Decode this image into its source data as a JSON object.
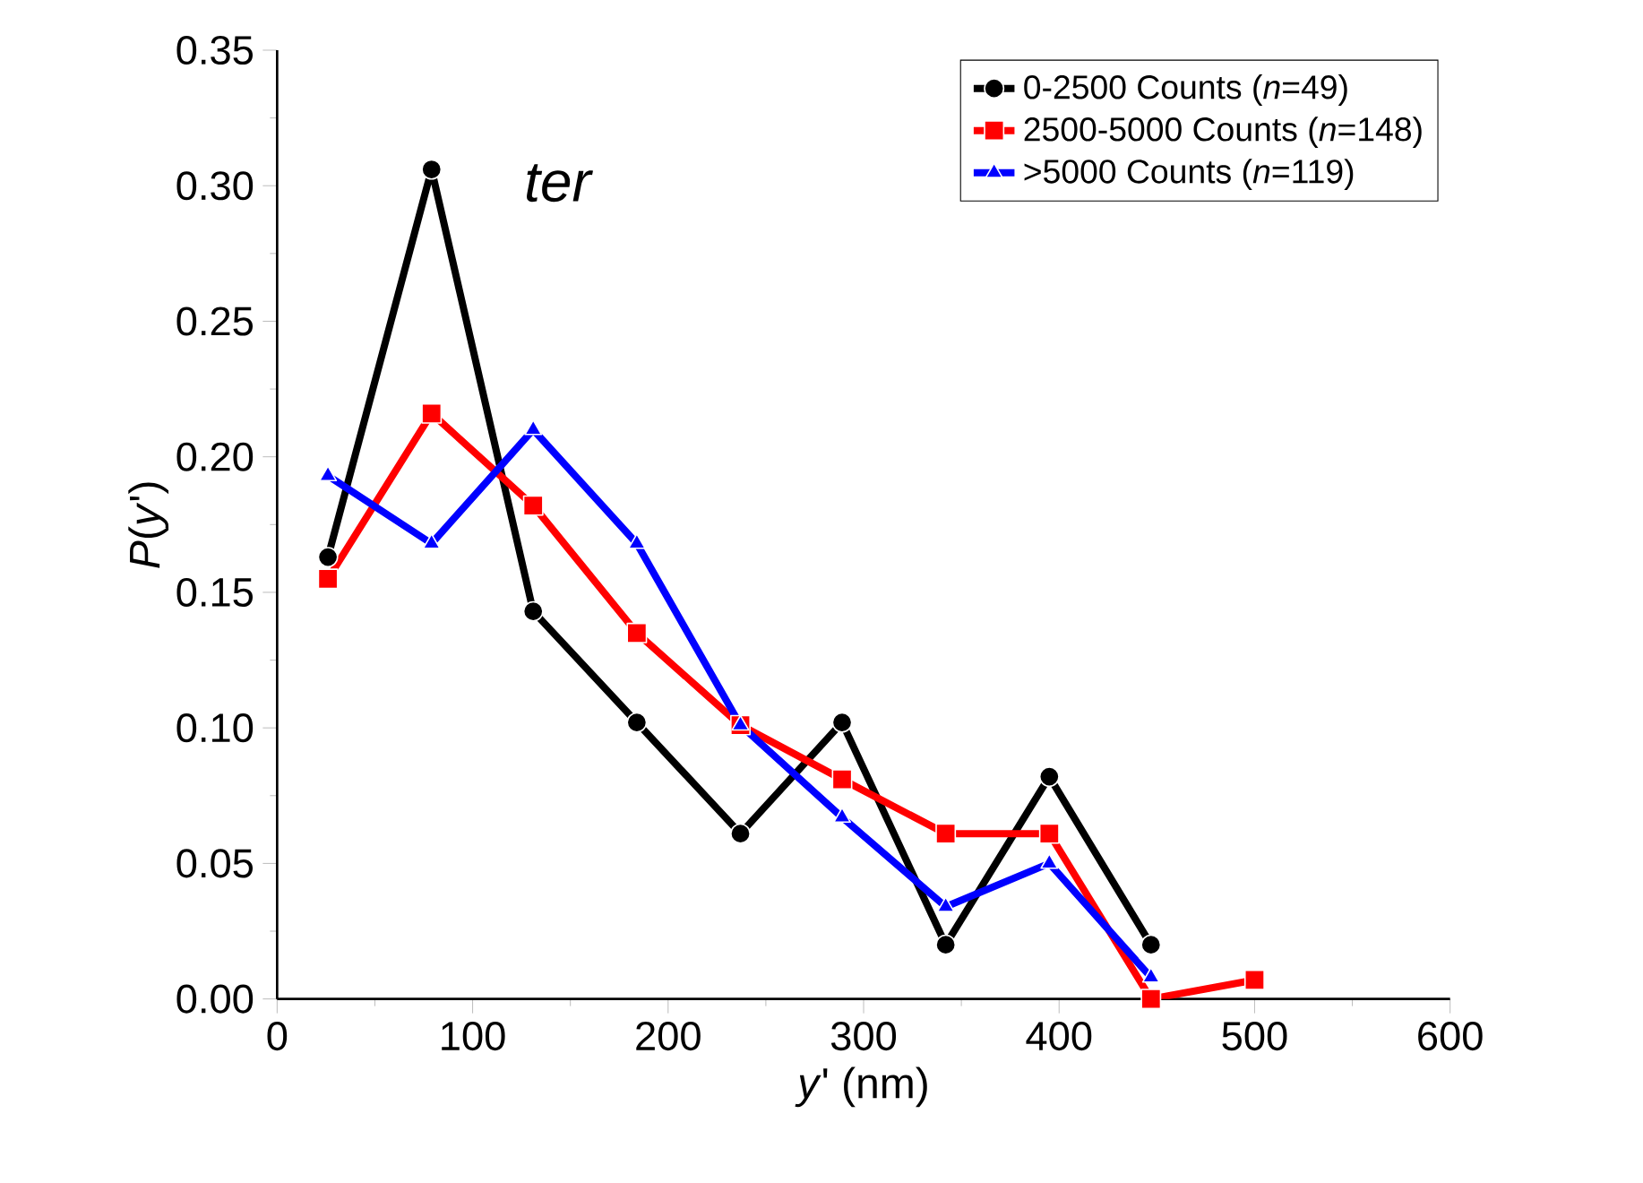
{
  "chart_data": {
    "type": "line",
    "xlabel": "*y*' (nm)",
    "ylabel": "*P*(*y*')",
    "annotations": [
      "*ter*"
    ],
    "series": [
      {
        "name": "0-2500 Counts (*n*=49)",
        "color": "#000000",
        "marker": "circle",
        "x": [
          26,
          79,
          131,
          184,
          237,
          289,
          342,
          395,
          447
        ],
        "values": [
          0.163,
          0.306,
          0.143,
          0.102,
          0.061,
          0.102,
          0.02,
          0.082,
          0.02
        ]
      },
      {
        "name": "2500-5000 Counts (*n*=148)",
        "color": "#ff0000",
        "marker": "square",
        "x": [
          26,
          79,
          131,
          184,
          237,
          289,
          342,
          395,
          447,
          500
        ],
        "values": [
          0.155,
          0.216,
          0.182,
          0.135,
          0.101,
          0.081,
          0.061,
          0.061,
          0.0,
          0.007
        ]
      },
      {
        "name": ">5000 Counts (*n*=119)",
        "color": "#0000ff",
        "marker": "triangle",
        "x": [
          26,
          79,
          131,
          184,
          237,
          289,
          342,
          395,
          447
        ],
        "values": [
          0.193,
          0.168,
          0.21,
          0.168,
          0.101,
          0.067,
          0.034,
          0.05,
          0.008
        ]
      }
    ],
    "xlim": [
      0,
      600
    ],
    "xticks": [
      0,
      100,
      200,
      300,
      400,
      500,
      600
    ],
    "ylim": [
      0,
      0.35
    ],
    "yticks": [
      {
        "value": 0,
        "label": "0.00"
      },
      {
        "value": 0.05,
        "label": "0.05"
      },
      {
        "value": 0.1,
        "label": "0.10"
      },
      {
        "value": 0.15,
        "label": "0.15"
      },
      {
        "value": 0.2,
        "label": "0.20"
      },
      {
        "value": 0.25,
        "label": "0.25"
      },
      {
        "value": 0.3,
        "label": "0.30"
      },
      {
        "value": 0.35,
        "label": "0.35"
      }
    ],
    "legend": "top right",
    "grid": false,
    "line_style": "solid"
  }
}
